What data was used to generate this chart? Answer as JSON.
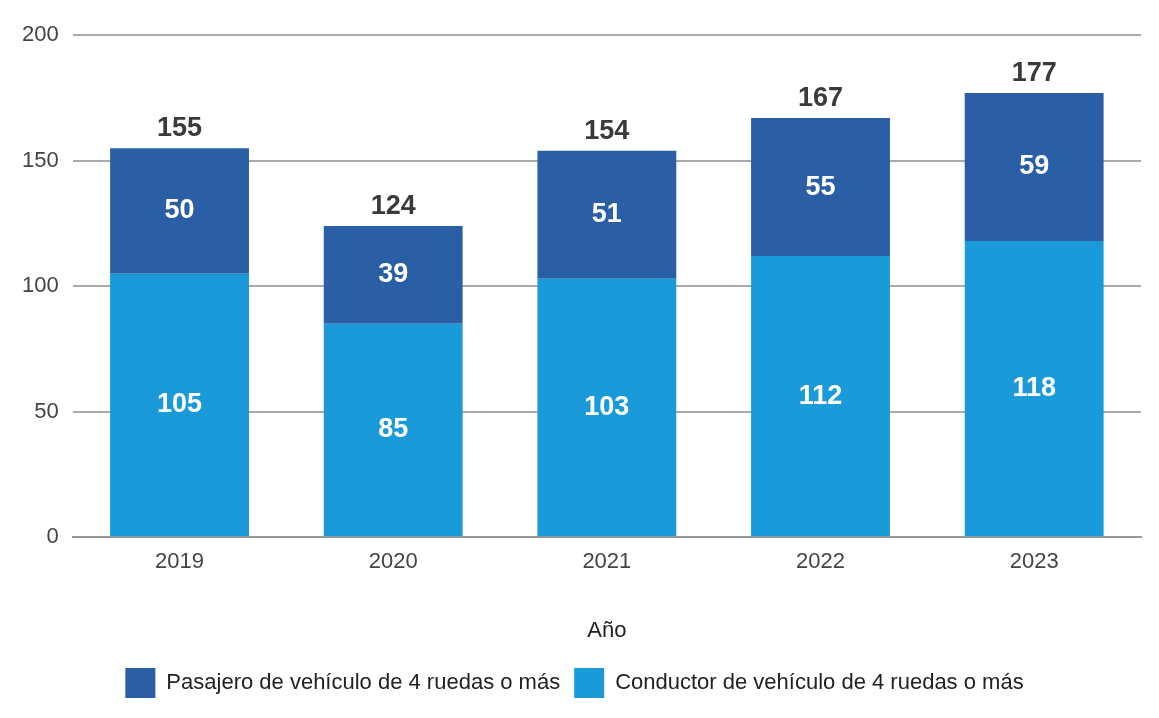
{
  "chart_data": {
    "type": "bar",
    "stacked": true,
    "xlabel": "Año",
    "categories": [
      "2019",
      "2020",
      "2021",
      "2022",
      "2023"
    ],
    "series": [
      {
        "name": "Conductor de vehículo de 4 ruedas o más",
        "color": "#1a9ad9",
        "values": [
          105,
          85,
          103,
          112,
          118
        ]
      },
      {
        "name": "Pasajero de vehículo de 4 ruedas o más",
        "color": "#2b5fa5",
        "values": [
          50,
          39,
          51,
          55,
          59
        ]
      }
    ],
    "totals": [
      "155",
      "124",
      "154",
      "167",
      "177"
    ],
    "data_labels": true,
    "ylim": [
      0,
      200
    ],
    "yticks": [
      0,
      50,
      100,
      150,
      200
    ],
    "grid": "y",
    "legend": "bottom"
  }
}
